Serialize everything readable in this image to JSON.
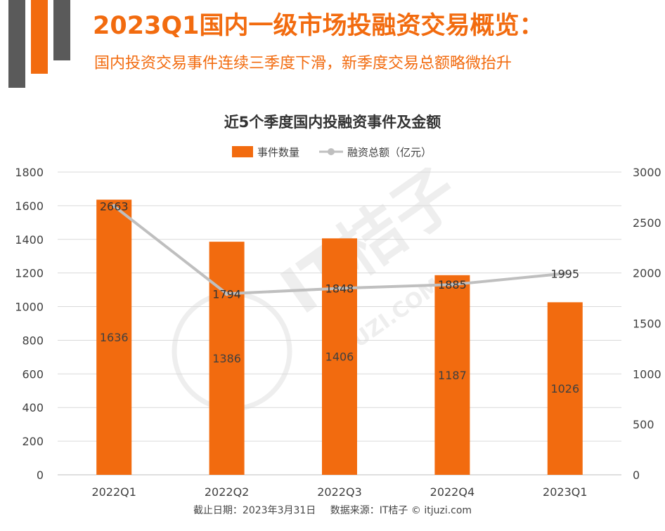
{
  "header": {
    "title": "2023Q1国内一级市场投融资交易概览：",
    "subtitle": "国内投资交易事件连续三季度下滑，新季度交易总额略微抬升"
  },
  "chart_data": {
    "type": "bar",
    "title": "近5个季度国内投融资事件及金额",
    "categories": [
      "2022Q1",
      "2022Q2",
      "2022Q3",
      "2022Q4",
      "2023Q1"
    ],
    "series": [
      {
        "name": "事件数量",
        "type": "bar",
        "axis": "left",
        "values": [
          1636,
          1386,
          1406,
          1187,
          1026
        ],
        "color": "#f26b0f"
      },
      {
        "name": "融资总额（亿元）",
        "type": "line",
        "axis": "right",
        "values": [
          2663,
          1794,
          1848,
          1885,
          1995
        ],
        "color": "#bfbfbf"
      }
    ],
    "y_left": {
      "range": [
        0,
        1800
      ],
      "ticks": [
        0,
        200,
        400,
        600,
        800,
        1000,
        1200,
        1400,
        1600,
        1800
      ]
    },
    "y_right": {
      "range": [
        0,
        3000
      ],
      "ticks": [
        0,
        500,
        1000,
        1500,
        2000,
        2500,
        3000
      ]
    },
    "grid": true,
    "legend": "top-center"
  },
  "footer": {
    "date": "截止日期：2023年3月31日",
    "source": "数据来源：IT桔子 © itjuzi.com"
  },
  "watermark": "IT桔子 ITJUZI.COM"
}
